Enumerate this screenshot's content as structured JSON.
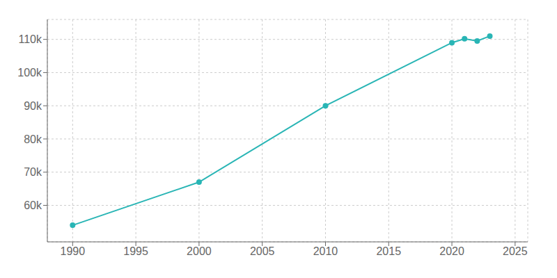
{
  "chart_data": {
    "type": "line",
    "x": [
      1990,
      2000,
      2010,
      2020,
      2021,
      2022,
      2023
    ],
    "values": [
      54000,
      67000,
      90000,
      109000,
      110200,
      109500,
      111000
    ],
    "color": "#29b5b5",
    "marker": "circle",
    "xlim": [
      1988,
      2026
    ],
    "ylim": [
      49000,
      116000
    ],
    "xticks": [
      1990,
      1995,
      2000,
      2005,
      2010,
      2015,
      2020,
      2025
    ],
    "yticks": [
      {
        "value": 60000,
        "label": "60k"
      },
      {
        "value": 70000,
        "label": "70k"
      },
      {
        "value": 80000,
        "label": "80k"
      },
      {
        "value": 90000,
        "label": "90k"
      },
      {
        "value": 100000,
        "label": "100k"
      },
      {
        "value": 110000,
        "label": "110k"
      }
    ],
    "grid": true
  }
}
